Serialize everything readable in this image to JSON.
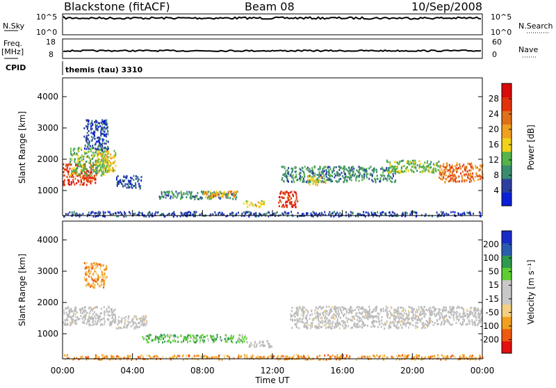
{
  "header": {
    "title": "Blackstone (fitACF)",
    "beam": "Beam 08",
    "date": "10/Sep/2008"
  },
  "top_panels": {
    "nsky_label": "N.Sky",
    "nsky_ticks": [
      "10^5",
      "10^0"
    ],
    "nsearch_label": "N.Search",
    "nsearch_ticks": [
      "10^5",
      "10^0"
    ],
    "freq_label": "Freq.",
    "freq_unit": "[MHz]",
    "freq_ticks": [
      "18",
      "8"
    ],
    "nave_label": "Nave",
    "nave_ticks": [
      "60",
      "0"
    ],
    "cpid_label": "CPID",
    "cpid_text": "themis (tau) 3310"
  },
  "colors": {
    "power": [
      "#0a1fd6",
      "#2c3f9e",
      "#3a8c6e",
      "#56b34a",
      "#f2d21a",
      "#f0a020",
      "#e07018",
      "#e4320c",
      "#d80a0a"
    ],
    "velocity": [
      "#e01010",
      "#f05a10",
      "#f0a020",
      "#f5d080",
      "#c8c8c8",
      "#c8c8c8",
      "#5ecf32",
      "#2f9a4e",
      "#2a5db0",
      "#1a2cc8"
    ],
    "ground_scatter": "#bcbcbc"
  },
  "chart_data": [
    {
      "type": "heatmap",
      "name": "power",
      "ylabel": "Slant Range [km]",
      "xlabel": "",
      "ylim": [
        200,
        4600
      ],
      "yticks": [
        "4000",
        "3000",
        "2000",
        "1000"
      ],
      "colorbar_label": "Power [dB]",
      "colorbar_ticks": [
        "28",
        "24",
        "20",
        "16",
        "12",
        "8",
        "4"
      ],
      "regions": [
        {
          "t0": 0.0,
          "t1": 1.9,
          "r0": 1200,
          "r1": 1900,
          "level": 7
        },
        {
          "t0": 0.4,
          "t1": 2.6,
          "r0": 1500,
          "r1": 2400,
          "level": 3
        },
        {
          "t0": 1.2,
          "t1": 2.6,
          "r0": 2300,
          "r1": 3300,
          "level": 1
        },
        {
          "t0": 1.9,
          "t1": 3.0,
          "r0": 1600,
          "r1": 2300,
          "level": 4
        },
        {
          "t0": 3.0,
          "t1": 4.5,
          "r0": 1100,
          "r1": 1500,
          "level": 1
        },
        {
          "t0": 5.5,
          "t1": 10.0,
          "r0": 750,
          "r1": 1000,
          "level": 2
        },
        {
          "t0": 8.0,
          "t1": 10.0,
          "r0": 800,
          "r1": 1000,
          "level": 5
        },
        {
          "t0": 10.3,
          "t1": 11.5,
          "r0": 500,
          "r1": 700,
          "level": 4
        },
        {
          "t0": 12.3,
          "t1": 13.4,
          "r0": 500,
          "r1": 1000,
          "level": 7
        },
        {
          "t0": 12.5,
          "t1": 19.0,
          "r0": 1300,
          "r1": 1800,
          "level": 2
        },
        {
          "t0": 14.0,
          "t1": 15.0,
          "r0": 1200,
          "r1": 1500,
          "level": 4
        },
        {
          "t0": 18.5,
          "t1": 21.5,
          "r0": 1600,
          "r1": 2000,
          "level": 3
        },
        {
          "t0": 21.5,
          "t1": 24.0,
          "r0": 1300,
          "r1": 1900,
          "level": 6
        },
        {
          "t0": 0.0,
          "t1": 24.0,
          "r0": 200,
          "r1": 350,
          "level": 1
        }
      ]
    },
    {
      "type": "heatmap",
      "name": "velocity",
      "ylabel": "Slant Range [km]",
      "xlabel": "Time UT",
      "xlim": [
        "00:00",
        "24:00"
      ],
      "xticks": [
        "00:00",
        "04:00",
        "08:00",
        "12:00",
        "16:00",
        "20:00",
        "00:00"
      ],
      "ylim": [
        200,
        4600
      ],
      "yticks": [
        "4000",
        "3000",
        "2000",
        "1000"
      ],
      "colorbar_label": "Velocity [m s⁻¹]",
      "colorbar_ticks": [
        "200",
        "100",
        "50",
        "15",
        "-15",
        "-50",
        "-100",
        "-200"
      ],
      "regions": [
        {
          "t0": 0.0,
          "t1": 3.0,
          "r0": 1300,
          "r1": 1900,
          "level": 4
        },
        {
          "t0": 1.2,
          "t1": 2.5,
          "r0": 2500,
          "r1": 3300,
          "level": 2
        },
        {
          "t0": 3.0,
          "t1": 4.8,
          "r0": 1200,
          "r1": 1600,
          "level": 4
        },
        {
          "t0": 4.5,
          "t1": 10.5,
          "r0": 750,
          "r1": 1000,
          "level": 6
        },
        {
          "t0": 10.5,
          "t1": 12.0,
          "r0": 600,
          "r1": 800,
          "level": 4
        },
        {
          "t0": 13.0,
          "t1": 21.0,
          "r0": 1200,
          "r1": 1900,
          "level": 4
        },
        {
          "t0": 21.0,
          "t1": 24.0,
          "r0": 1300,
          "r1": 1900,
          "level": 4
        },
        {
          "t0": 0.0,
          "t1": 24.0,
          "r0": 200,
          "r1": 350,
          "level": 2
        }
      ]
    }
  ]
}
